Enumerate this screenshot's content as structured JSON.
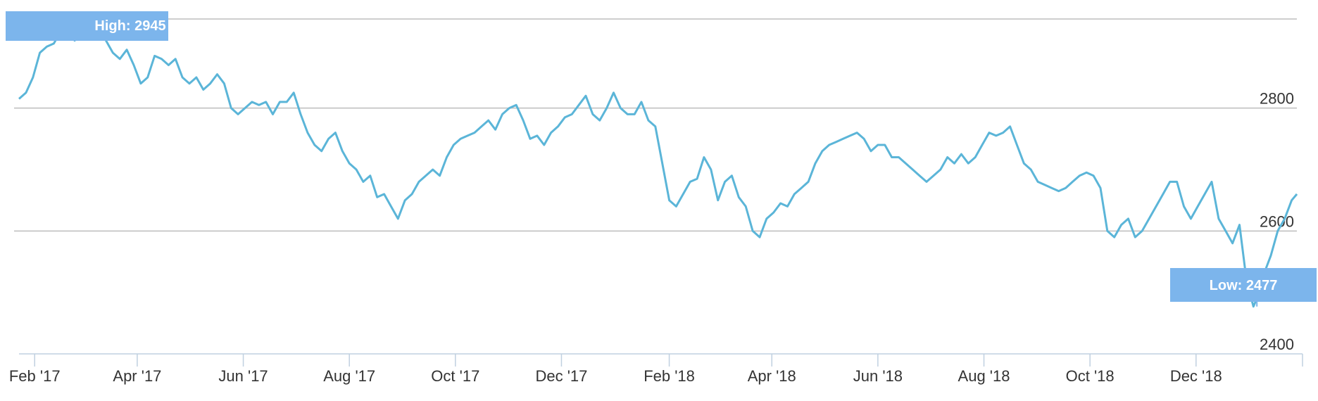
{
  "chart_data": {
    "type": "line",
    "x_start": "2017-01-23",
    "x_end": "2019-01-28",
    "ylim": [
      2400,
      2945
    ],
    "y_ticks": [
      2400,
      2600,
      2800
    ],
    "x_ticks": [
      {
        "date": "2017-02-01",
        "label": "Feb '17"
      },
      {
        "date": "2017-04-01",
        "label": "Apr '17"
      },
      {
        "date": "2017-06-01",
        "label": "Jun '17"
      },
      {
        "date": "2017-08-01",
        "label": "Aug '17"
      },
      {
        "date": "2017-10-01",
        "label": "Oct '17"
      },
      {
        "date": "2017-12-01",
        "label": "Dec '17"
      },
      {
        "date": "2018-02-01",
        "label": "Feb '18"
      },
      {
        "date": "2018-04-01",
        "label": "Apr '18"
      },
      {
        "date": "2018-06-01",
        "label": "Jun '18"
      },
      {
        "date": "2018-08-01",
        "label": "Aug '18"
      },
      {
        "date": "2018-10-01",
        "label": "Oct '18"
      },
      {
        "date": "2018-12-01",
        "label": "Dec '18"
      }
    ],
    "high": {
      "label": "High: 2945",
      "date": "2017-03-10",
      "value": 2945
    },
    "low": {
      "label": "Low: 2477",
      "date": "2019-01-05",
      "value": 2477
    },
    "line_color": "#5bb5d8",
    "flag_color": "#7cb5ec",
    "series": [
      {
        "x": [
          "2017-01-23",
          "2017-01-27",
          "2017-01-31",
          "2017-02-04",
          "2017-02-08",
          "2017-02-12",
          "2017-02-16",
          "2017-02-20",
          "2017-02-24",
          "2017-02-28",
          "2017-03-04",
          "2017-03-08",
          "2017-03-10",
          "2017-03-14",
          "2017-03-18",
          "2017-03-22",
          "2017-03-26",
          "2017-03-30",
          "2017-04-03",
          "2017-04-07",
          "2017-04-11",
          "2017-04-15",
          "2017-04-19",
          "2017-04-23",
          "2017-04-27",
          "2017-05-01",
          "2017-05-05",
          "2017-05-09",
          "2017-05-13",
          "2017-05-17",
          "2017-05-21",
          "2017-05-25",
          "2017-05-29",
          "2017-06-02",
          "2017-06-06",
          "2017-06-10",
          "2017-06-14",
          "2017-06-18",
          "2017-06-22",
          "2017-06-26",
          "2017-06-30",
          "2017-07-04",
          "2017-07-08",
          "2017-07-12",
          "2017-07-16",
          "2017-07-20",
          "2017-07-24",
          "2017-07-28",
          "2017-08-01",
          "2017-08-05",
          "2017-08-09",
          "2017-08-13",
          "2017-08-17",
          "2017-08-21",
          "2017-08-25",
          "2017-08-29",
          "2017-09-02",
          "2017-09-06",
          "2017-09-10",
          "2017-09-14",
          "2017-09-18",
          "2017-09-22",
          "2017-09-26",
          "2017-09-30",
          "2017-10-04",
          "2017-10-08",
          "2017-10-12",
          "2017-10-16",
          "2017-10-20",
          "2017-10-24",
          "2017-10-28",
          "2017-11-01",
          "2017-11-05",
          "2017-11-09",
          "2017-11-13",
          "2017-11-17",
          "2017-11-21",
          "2017-11-25",
          "2017-11-29",
          "2017-12-03",
          "2017-12-07",
          "2017-12-11",
          "2017-12-15",
          "2017-12-19",
          "2017-12-23",
          "2017-12-27",
          "2017-12-31",
          "2018-01-04",
          "2018-01-08",
          "2018-01-12",
          "2018-01-16",
          "2018-01-20",
          "2018-01-24",
          "2018-01-28",
          "2018-02-01",
          "2018-02-05",
          "2018-02-09",
          "2018-02-13",
          "2018-02-17",
          "2018-02-21",
          "2018-02-25",
          "2018-03-01",
          "2018-03-05",
          "2018-03-09",
          "2018-03-13",
          "2018-03-17",
          "2018-03-21",
          "2018-03-25",
          "2018-03-29",
          "2018-04-02",
          "2018-04-06",
          "2018-04-10",
          "2018-04-14",
          "2018-04-18",
          "2018-04-22",
          "2018-04-26",
          "2018-04-30",
          "2018-05-04",
          "2018-05-08",
          "2018-05-12",
          "2018-05-16",
          "2018-05-20",
          "2018-05-24",
          "2018-05-28",
          "2018-06-01",
          "2018-06-05",
          "2018-06-09",
          "2018-06-13",
          "2018-06-17",
          "2018-06-21",
          "2018-06-25",
          "2018-06-29",
          "2018-07-03",
          "2018-07-07",
          "2018-07-11",
          "2018-07-15",
          "2018-07-19",
          "2018-07-23",
          "2018-07-27",
          "2018-07-31",
          "2018-08-04",
          "2018-08-08",
          "2018-08-12",
          "2018-08-16",
          "2018-08-20",
          "2018-08-24",
          "2018-08-28",
          "2018-09-01",
          "2018-09-05",
          "2018-09-09",
          "2018-09-13",
          "2018-09-17",
          "2018-09-21",
          "2018-09-25",
          "2018-09-29",
          "2018-10-03",
          "2018-10-07",
          "2018-10-11",
          "2018-10-15",
          "2018-10-19",
          "2018-10-23",
          "2018-10-27",
          "2018-10-31",
          "2018-11-04",
          "2018-11-08",
          "2018-11-12",
          "2018-11-16",
          "2018-11-20",
          "2018-11-24",
          "2018-11-28",
          "2018-12-02",
          "2018-12-06",
          "2018-12-10",
          "2018-12-14",
          "2018-12-18",
          "2018-12-22",
          "2018-12-26",
          "2018-12-30",
          "2019-01-03",
          "2019-01-05",
          "2019-01-09",
          "2019-01-13",
          "2019-01-17",
          "2019-01-21",
          "2019-01-25",
          "2019-01-28"
        ],
        "values": [
          2815,
          2825,
          2850,
          2890,
          2900,
          2905,
          2925,
          2930,
          2910,
          2920,
          2935,
          2945,
          2925,
          2910,
          2890,
          2880,
          2895,
          2870,
          2840,
          2850,
          2885,
          2880,
          2870,
          2880,
          2850,
          2840,
          2850,
          2830,
          2840,
          2855,
          2840,
          2800,
          2790,
          2800,
          2810,
          2805,
          2810,
          2790,
          2810,
          2810,
          2825,
          2790,
          2760,
          2740,
          2730,
          2750,
          2760,
          2730,
          2710,
          2700,
          2680,
          2690,
          2655,
          2660,
          2640,
          2620,
          2650,
          2660,
          2680,
          2690,
          2700,
          2690,
          2720,
          2740,
          2750,
          2755,
          2760,
          2770,
          2780,
          2765,
          2790,
          2800,
          2805,
          2780,
          2750,
          2755,
          2740,
          2760,
          2770,
          2785,
          2790,
          2805,
          2820,
          2790,
          2780,
          2800,
          2825,
          2800,
          2790,
          2790,
          2810,
          2780,
          2770,
          2710,
          2650,
          2640,
          2660,
          2680,
          2685,
          2720,
          2700,
          2650,
          2680,
          2690,
          2655,
          2640,
          2600,
          2590,
          2620,
          2630,
          2645,
          2640,
          2660,
          2670,
          2680,
          2710,
          2730,
          2740,
          2745,
          2750,
          2755,
          2760,
          2750,
          2730,
          2740,
          2740,
          2720,
          2720,
          2710,
          2700,
          2690,
          2680,
          2690,
          2700,
          2720,
          2710,
          2725,
          2710,
          2720,
          2740,
          2760,
          2755,
          2760,
          2770,
          2740,
          2710,
          2700,
          2680,
          2675,
          2670,
          2665,
          2670,
          2680,
          2690,
          2695,
          2690,
          2670,
          2600,
          2590,
          2610,
          2620,
          2590,
          2600,
          2620,
          2640,
          2660,
          2680,
          2680,
          2640,
          2620,
          2640,
          2660,
          2680,
          2620,
          2600,
          2580,
          2610,
          2520,
          2477,
          2490,
          2530,
          2560,
          2600,
          2620,
          2650,
          2660
        ]
      }
    ]
  }
}
